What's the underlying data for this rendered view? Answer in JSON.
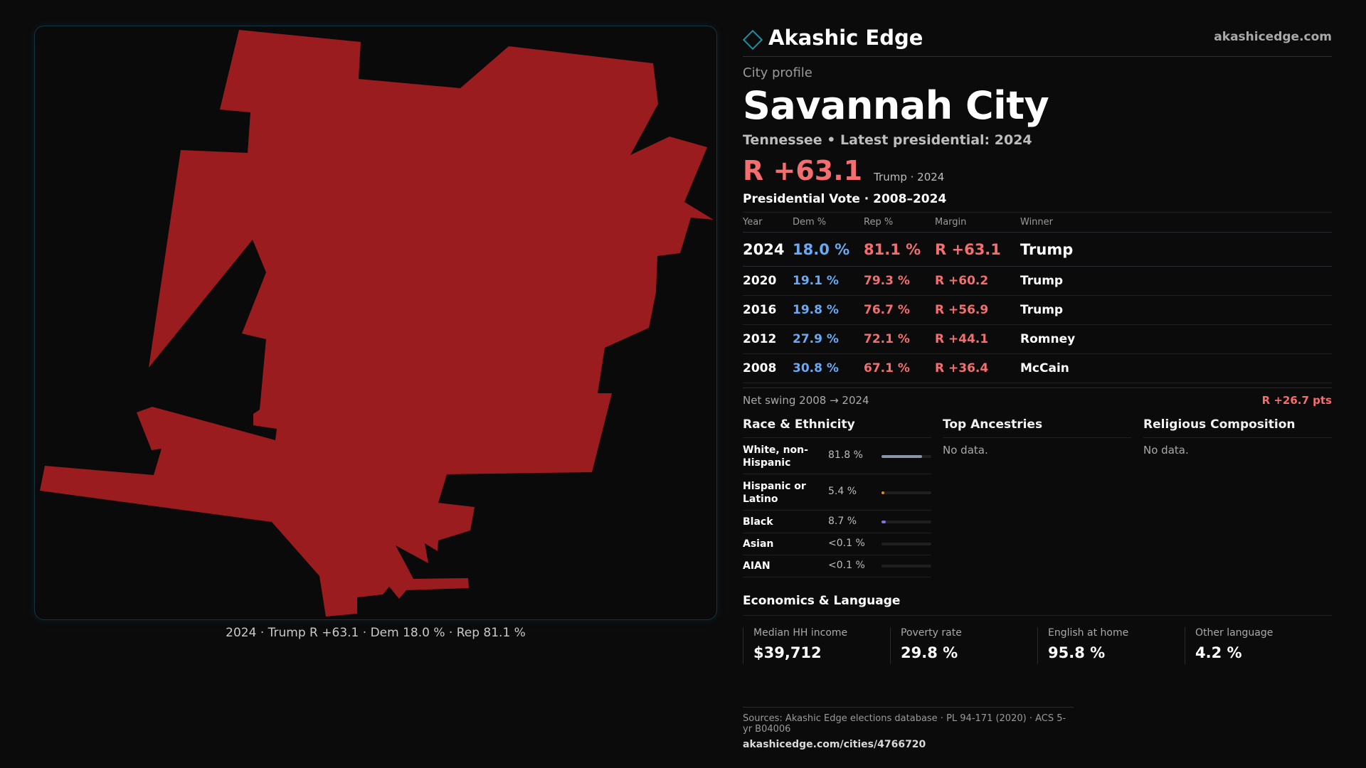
{
  "brand": {
    "name": "Akashic Edge",
    "url": "akashicedge.com"
  },
  "map": {
    "fill_color": "#9a1c1f",
    "caption": "2024 · Trump R +63.1 · Dem 18.0 % · Rep 81.1 %"
  },
  "profile": {
    "kicker": "City profile",
    "city": "Savannah City",
    "subline": "Tennessee • Latest presidential: 2024",
    "margin": "R +63.1",
    "margin_note": "Trump · 2024"
  },
  "votes": {
    "title": "Presidential Vote · 2008–2024",
    "headers": {
      "year": "Year",
      "dem": "Dem %",
      "rep": "Rep %",
      "margin": "Margin",
      "winner": "Winner"
    },
    "rows": [
      {
        "year": "2024",
        "dem": "18.0 %",
        "rep": "81.1 %",
        "margin": "R +63.1",
        "winner": "Trump"
      },
      {
        "year": "2020",
        "dem": "19.1 %",
        "rep": "79.3 %",
        "margin": "R +60.2",
        "winner": "Trump"
      },
      {
        "year": "2016",
        "dem": "19.8 %",
        "rep": "76.7 %",
        "margin": "R +56.9",
        "winner": "Trump"
      },
      {
        "year": "2012",
        "dem": "27.9 %",
        "rep": "72.1 %",
        "margin": "R +44.1",
        "winner": "Romney"
      },
      {
        "year": "2008",
        "dem": "30.8 %",
        "rep": "67.1 %",
        "margin": "R +36.4",
        "winner": "McCain"
      }
    ],
    "swing_label": "Net swing 2008 → 2024",
    "swing_value": "R +26.7 pts"
  },
  "race": {
    "title": "Race & Ethnicity",
    "rows": [
      {
        "label": "White, non-Hispanic",
        "pct": "81.8 %",
        "share": 0.818,
        "color": "#8a95a8"
      },
      {
        "label": "Hispanic or Latino",
        "pct": "5.4 %",
        "share": 0.054,
        "color": "#e08a1e"
      },
      {
        "label": "Black",
        "pct": "8.7 %",
        "share": 0.087,
        "color": "#8a6fe0"
      },
      {
        "label": "Asian",
        "pct": "<0.1 %",
        "share": 0.0,
        "color": "#4fb3a6"
      },
      {
        "label": "AIAN",
        "pct": "<0.1 %",
        "share": 0.0,
        "color": "#c06f9a"
      }
    ]
  },
  "ancestries": {
    "title": "Top Ancestries",
    "empty": "No data."
  },
  "religion": {
    "title": "Religious Composition",
    "empty": "No data."
  },
  "economics": {
    "title": "Economics & Language",
    "cells": [
      {
        "label": "Median HH income",
        "value": "$39,712"
      },
      {
        "label": "Poverty rate",
        "value": "29.8 %"
      },
      {
        "label": "English at home",
        "value": "95.8 %"
      },
      {
        "label": "Other language",
        "value": "4.2 %"
      }
    ]
  },
  "footer": {
    "sources": "Sources: Akashic Edge elections database · PL 94-171 (2020) · ACS 5-yr B04006",
    "url": "akashicedge.com/cities/4766720"
  }
}
